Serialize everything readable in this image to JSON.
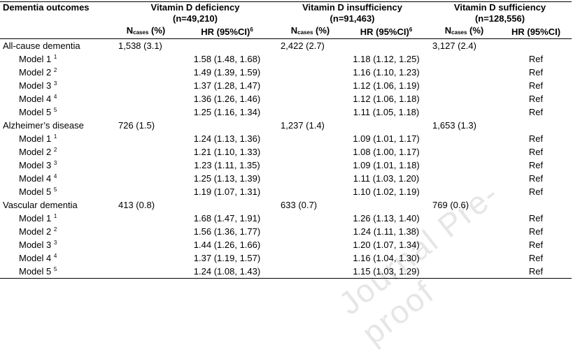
{
  "watermark": "Journal Pre-proof",
  "header": {
    "outcome_label": "Dementia outcomes",
    "groups": [
      {
        "title": "Vitamin D deficiency",
        "n": "(n=49,210)"
      },
      {
        "title": "Vitamin D insufficiency",
        "n": "(n=91,463)"
      },
      {
        "title": "Vitamin D sufficiency",
        "n": "(n=128,556)"
      }
    ],
    "ncases_main": "N",
    "ncases_sub": "cases",
    "ncases_pct": " (%)",
    "hr_label": "HR (95%CI)",
    "hr_sup": "6"
  },
  "outcomes": [
    {
      "name": "All-cause dementia",
      "ncases": [
        "1,538 (3.1)",
        "2,422 (2.7)",
        "3,127 (2.4)"
      ],
      "models": [
        {
          "label": "Model 1 ",
          "sup": "1",
          "hr": [
            "1.58 (1.48, 1.68)",
            "1.18 (1.12, 1.25)",
            "Ref"
          ]
        },
        {
          "label": "Model 2 ",
          "sup": "2",
          "hr": [
            "1.49 (1.39, 1.59)",
            "1.16 (1.10, 1.23)",
            "Ref"
          ]
        },
        {
          "label": "Model 3 ",
          "sup": "3",
          "hr": [
            "1.37 (1.28, 1.47)",
            "1.12 (1.06, 1.19)",
            "Ref"
          ]
        },
        {
          "label": "Model 4 ",
          "sup": "4",
          "hr": [
            "1.36 (1.26, 1.46)",
            "1.12 (1.06, 1.18)",
            "Ref"
          ]
        },
        {
          "label": "Model 5 ",
          "sup": "5",
          "hr": [
            "1.25 (1.16, 1.34)",
            "1.11 (1.05, 1.18)",
            "Ref"
          ]
        }
      ]
    },
    {
      "name": "Alzheimer’s disease",
      "ncases": [
        "726 (1.5)",
        "1,237 (1.4)",
        "1,653 (1.3)"
      ],
      "models": [
        {
          "label": "Model 1 ",
          "sup": "1",
          "hr": [
            "1.24 (1.13, 1.36)",
            "1.09 (1.01, 1.17)",
            "Ref"
          ]
        },
        {
          "label": "Model 2 ",
          "sup": "2",
          "hr": [
            "1.21 (1.10, 1.33)",
            "1.08 (1.00, 1.17)",
            "Ref"
          ]
        },
        {
          "label": "Model 3 ",
          "sup": "3",
          "hr": [
            "1.23 (1.11, 1.35)",
            "1.09 (1.01, 1.18)",
            "Ref"
          ]
        },
        {
          "label": "Model 4 ",
          "sup": "4",
          "hr": [
            "1.25 (1.13, 1.39)",
            "1.11 (1.03, 1.20)",
            "Ref"
          ]
        },
        {
          "label": "Model 5 ",
          "sup": "5",
          "hr": [
            "1.19 (1.07, 1.31)",
            "1.10 (1.02, 1.19)",
            "Ref"
          ]
        }
      ]
    },
    {
      "name": "Vascular dementia",
      "ncases": [
        "413 (0.8)",
        "633 (0.7)",
        "769 (0.6)"
      ],
      "models": [
        {
          "label": "Model 1 ",
          "sup": "1",
          "hr": [
            "1.68 (1.47, 1.91)",
            "1.26 (1.13, 1.40)",
            "Ref"
          ]
        },
        {
          "label": "Model 2 ",
          "sup": "2",
          "hr": [
            "1.56 (1.36, 1.77)",
            "1.24 (1.11, 1.38)",
            "Ref"
          ]
        },
        {
          "label": "Model 3 ",
          "sup": "3",
          "hr": [
            "1.44 (1.26, 1.66)",
            "1.20 (1.07, 1.34)",
            "Ref"
          ]
        },
        {
          "label": "Model 4 ",
          "sup": "4",
          "hr": [
            "1.37 (1.19, 1.57)",
            "1.16 (1.04, 1.30)",
            "Ref"
          ]
        },
        {
          "label": "Model 5 ",
          "sup": "5",
          "hr": [
            "1.24 (1.08, 1.43)",
            "1.15 (1.03, 1.29)",
            "Ref"
          ]
        }
      ]
    }
  ]
}
